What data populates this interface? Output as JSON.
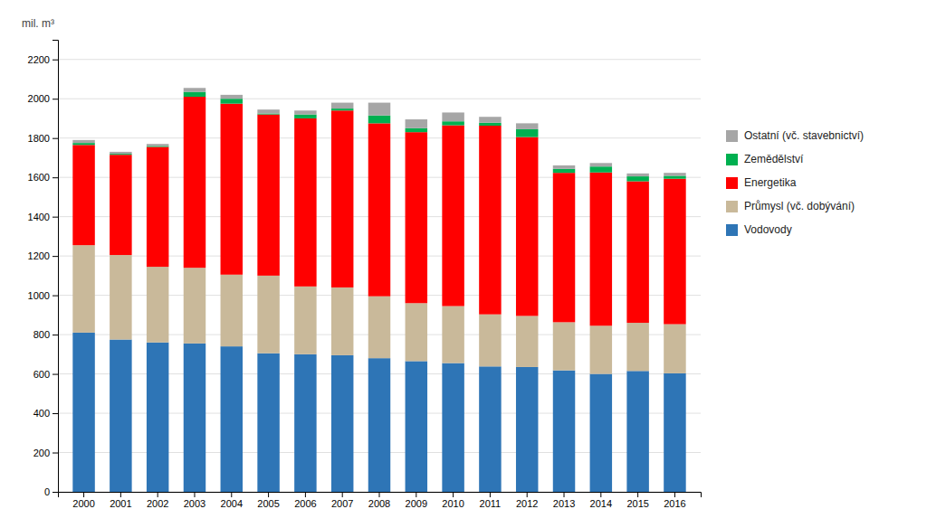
{
  "chart_data": {
    "type": "bar",
    "stacked": true,
    "ylabel": "mil. m³",
    "categories": [
      "2000",
      "2001",
      "2002",
      "2003",
      "2004",
      "2005",
      "2006",
      "2007",
      "2008",
      "2009",
      "2010",
      "2011",
      "2012",
      "2013",
      "2014",
      "2015",
      "2016"
    ],
    "series": [
      {
        "name": "Vodovody",
        "color": "#2E75B6",
        "values": [
          810,
          775,
          760,
          755,
          740,
          705,
          700,
          695,
          680,
          665,
          655,
          638,
          635,
          618,
          600,
          615,
          603
        ]
      },
      {
        "name": "Průmysl (vč. dobývání)",
        "color": "#C9B99A",
        "values": [
          445,
          430,
          385,
          385,
          365,
          395,
          345,
          345,
          315,
          295,
          290,
          265,
          260,
          245,
          245,
          245,
          250
        ]
      },
      {
        "name": "Energetika",
        "color": "#FF0000",
        "values": [
          510,
          510,
          610,
          870,
          870,
          820,
          855,
          900,
          880,
          870,
          920,
          960,
          910,
          760,
          780,
          720,
          740
        ]
      },
      {
        "name": "Zemědělství",
        "color": "#00B050",
        "values": [
          10,
          5,
          5,
          25,
          25,
          5,
          20,
          10,
          40,
          20,
          20,
          15,
          40,
          20,
          30,
          25,
          15
        ]
      },
      {
        "name": "Ostatní (vč. stavebnictví)",
        "color": "#A6A6A6",
        "values": [
          15,
          10,
          10,
          20,
          20,
          20,
          20,
          30,
          65,
          45,
          45,
          30,
          30,
          18,
          18,
          15,
          15
        ]
      }
    ],
    "ylim": [
      0,
      2300
    ],
    "yticks": [
      0,
      200,
      400,
      600,
      800,
      1000,
      1200,
      1400,
      1600,
      1800,
      2000,
      2200
    ],
    "grid": true,
    "legend": "right"
  }
}
